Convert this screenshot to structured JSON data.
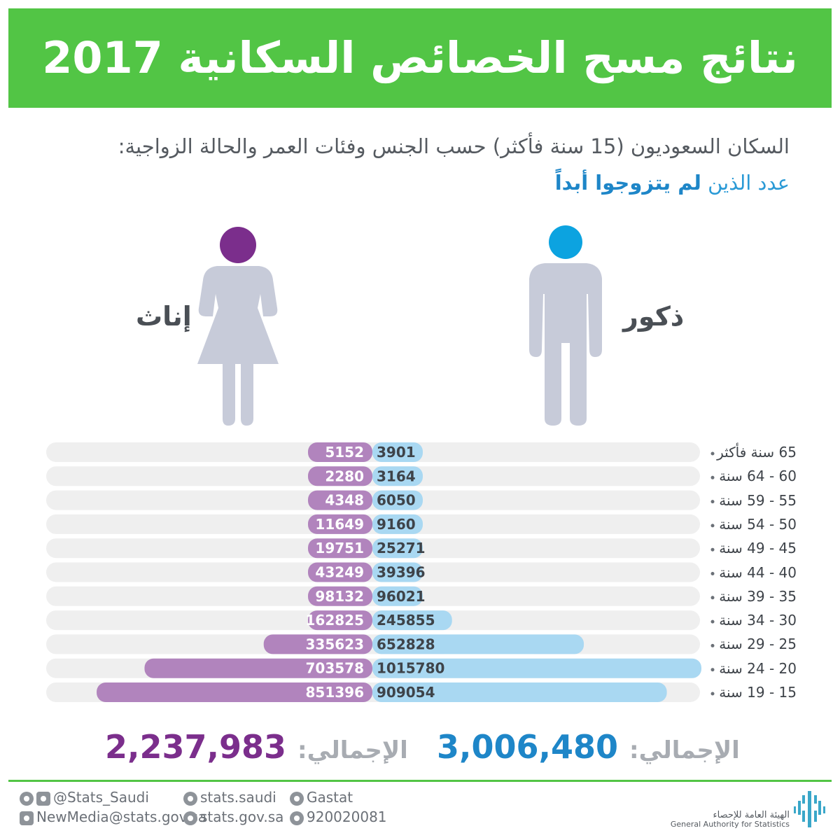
{
  "header": {
    "title": "نتائج مسح الخصائص السكانية 2017"
  },
  "subtitle": {
    "line1": "السكان السعوديون (15 سنة فأكثر) حسب الجنس وفئات العمر والحالة الزواجية:",
    "line2_prefix": "عدد الذين ",
    "line2_highlight": "لم يتزوجوا أبداً"
  },
  "genders": {
    "female": "إناث",
    "male": "ذكور"
  },
  "colors": {
    "header": "#52c545",
    "female_bar": "#b184bd",
    "male_bar": "#a9d8f2",
    "track": "#efefef",
    "female_icon": "#7b2e8c",
    "male_icon": "#0ca3e0",
    "figure": "#c7cbd9"
  },
  "chart_data": {
    "type": "bar",
    "orientation": "horizontal-butterfly",
    "categories": [
      "65 سنة فأكثر",
      "60 - 64 سنة",
      "55 - 59 سنة",
      "50 - 54 سنة",
      "45 - 49 سنة",
      "40 - 44 سنة",
      "35 - 39 سنة",
      "30 - 34 سنة",
      "25 - 29 سنة",
      "20 - 24 سنة",
      "15 - 19 سنة"
    ],
    "series": [
      {
        "name": "إناث",
        "values": [
          5152,
          2280,
          4348,
          11649,
          19751,
          43249,
          98132,
          162825,
          335623,
          703578,
          851396
        ]
      },
      {
        "name": "ذكور",
        "values": [
          3901,
          3164,
          6050,
          9160,
          25271,
          39396,
          96021,
          245855,
          652828,
          1015780,
          909054
        ]
      }
    ]
  },
  "totals": {
    "label": "الإجمالي:",
    "female": "2,237,983",
    "male": "3,006,480"
  },
  "footer": {
    "twitter": "@Stats_Saudi",
    "facebook": "stats.saudi",
    "linkedin": "Gastat",
    "email": "NewMedia@stats.gov.sa",
    "web": "stats.gov.sa",
    "phone": "920020081",
    "org_ar": "الهيئة العامة للإحصاء",
    "org_en": "General Authority for Statistics"
  }
}
